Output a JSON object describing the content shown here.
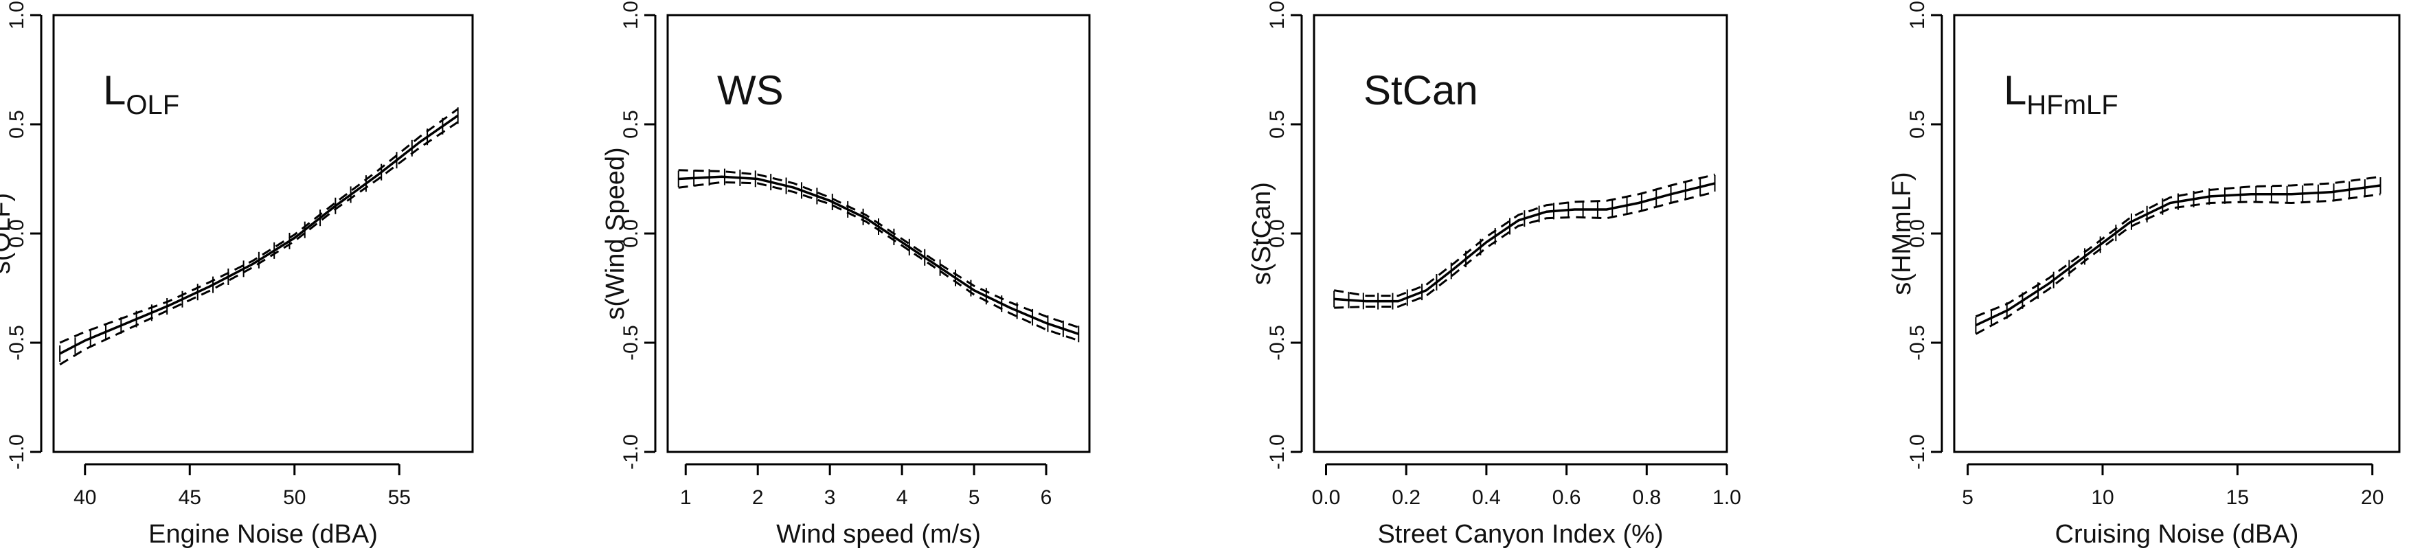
{
  "chart_data": [
    {
      "type": "line",
      "panel": "L_OLF",
      "label_main": "L",
      "label_sub": "OLF",
      "xlabel": "Engine Noise (dBA)",
      "ylabel": "s(OLF)",
      "xlim": [
        38.5,
        58.5
      ],
      "ylim": [
        -1.0,
        1.0
      ],
      "xticks": [
        40,
        45,
        50,
        55
      ],
      "xtick_labels": [
        "40",
        "45",
        "50",
        "55"
      ],
      "yticks": [
        -1.0,
        -0.5,
        0.0,
        0.5,
        1.0
      ],
      "ytick_labels": [
        "-1.0",
        "-0.5",
        "0.0",
        "0.5",
        "1.0"
      ],
      "x": [
        38.8,
        40,
        42,
        44,
        46,
        48,
        50,
        52,
        54,
        56,
        57.8
      ],
      "fit": [
        -0.55,
        -0.49,
        -0.41,
        -0.33,
        -0.24,
        -0.14,
        -0.02,
        0.13,
        0.27,
        0.42,
        0.54
      ],
      "upper": [
        -0.5,
        -0.45,
        -0.38,
        -0.31,
        -0.22,
        -0.125,
        -0.005,
        0.145,
        0.29,
        0.445,
        0.57
      ],
      "lower": [
        -0.6,
        -0.53,
        -0.44,
        -0.35,
        -0.26,
        -0.155,
        -0.035,
        0.115,
        0.25,
        0.395,
        0.51
      ]
    },
    {
      "type": "line",
      "panel": "WS",
      "label_main": "WS",
      "label_sub": "",
      "xlabel": "Wind speed (m/s)",
      "ylabel": "s(Wind Speed)",
      "xlim": [
        0.75,
        6.6
      ],
      "ylim": [
        -1.0,
        1.0
      ],
      "xticks": [
        1,
        2,
        3,
        4,
        5,
        6
      ],
      "xtick_labels": [
        "1",
        "2",
        "3",
        "4",
        "5",
        "6"
      ],
      "yticks": [
        -1.0,
        -0.5,
        0.0,
        0.5,
        1.0
      ],
      "ytick_labels": [
        "-1.0",
        "-0.5",
        "0.0",
        "0.5",
        "1.0"
      ],
      "x": [
        0.9,
        1.5,
        2.0,
        2.5,
        3.0,
        3.5,
        4.0,
        4.5,
        5.0,
        5.5,
        6.0,
        6.45
      ],
      "fit": [
        0.25,
        0.26,
        0.25,
        0.21,
        0.15,
        0.07,
        -0.04,
        -0.15,
        -0.26,
        -0.34,
        -0.41,
        -0.46
      ],
      "upper": [
        0.29,
        0.285,
        0.27,
        0.23,
        0.165,
        0.085,
        -0.025,
        -0.135,
        -0.24,
        -0.315,
        -0.38,
        -0.43
      ],
      "lower": [
        0.21,
        0.235,
        0.23,
        0.19,
        0.135,
        0.055,
        -0.055,
        -0.165,
        -0.28,
        -0.365,
        -0.44,
        -0.49
      ]
    },
    {
      "type": "line",
      "panel": "StCan",
      "label_main": "StCan",
      "label_sub": "",
      "xlabel": "Street Canyon Index (%)",
      "ylabel": "s(StCan)",
      "xlim": [
        -0.03,
        1.0
      ],
      "ylim": [
        -1.0,
        1.0
      ],
      "xticks": [
        0.0,
        0.2,
        0.4,
        0.6,
        0.8,
        1.0
      ],
      "xtick_labels": [
        "0.0",
        "0.2",
        "0.4",
        "0.6",
        "0.8",
        "1.0"
      ],
      "yticks": [
        -1.0,
        -0.5,
        0.0,
        0.5,
        1.0
      ],
      "ytick_labels": [
        "-1.0",
        "-0.5",
        "0.0",
        "0.5",
        "1.0"
      ],
      "x": [
        0.02,
        0.1,
        0.18,
        0.25,
        0.32,
        0.4,
        0.48,
        0.55,
        0.62,
        0.7,
        0.78,
        0.86,
        0.97
      ],
      "fit": [
        -0.3,
        -0.31,
        -0.31,
        -0.26,
        -0.16,
        -0.04,
        0.06,
        0.1,
        0.11,
        0.11,
        0.14,
        0.18,
        0.23
      ],
      "upper": [
        -0.26,
        -0.285,
        -0.285,
        -0.235,
        -0.135,
        -0.015,
        0.085,
        0.13,
        0.145,
        0.15,
        0.18,
        0.22,
        0.27
      ],
      "lower": [
        -0.34,
        -0.335,
        -0.335,
        -0.285,
        -0.185,
        -0.065,
        0.035,
        0.07,
        0.075,
        0.07,
        0.1,
        0.14,
        0.19
      ]
    },
    {
      "type": "line",
      "panel": "L_HFmLF",
      "label_main": "L",
      "label_sub": "HFmLF",
      "xlabel": "Cruising Noise (dBA)",
      "ylabel": "s(HMmLF)",
      "xlim": [
        4.5,
        21.0
      ],
      "ylim": [
        -1.0,
        1.0
      ],
      "xticks": [
        5,
        10,
        15,
        20
      ],
      "xtick_labels": [
        "5",
        "10",
        "15",
        "20"
      ],
      "yticks": [
        -1.0,
        -0.5,
        0.0,
        0.5,
        1.0
      ],
      "ytick_labels": [
        "-1.0",
        "-0.5",
        "0.0",
        "0.5",
        "1.0"
      ],
      "x": [
        5.3,
        6.5,
        8.0,
        9.5,
        11.0,
        12.5,
        14.0,
        15.5,
        17.0,
        18.5,
        20.3
      ],
      "fit": [
        -0.42,
        -0.35,
        -0.23,
        -0.09,
        0.05,
        0.14,
        0.17,
        0.18,
        0.18,
        0.19,
        0.22
      ],
      "upper": [
        -0.38,
        -0.32,
        -0.205,
        -0.07,
        0.07,
        0.165,
        0.2,
        0.215,
        0.22,
        0.23,
        0.26
      ],
      "lower": [
        -0.46,
        -0.38,
        -0.255,
        -0.11,
        0.03,
        0.115,
        0.14,
        0.145,
        0.14,
        0.15,
        0.18
      ]
    }
  ]
}
